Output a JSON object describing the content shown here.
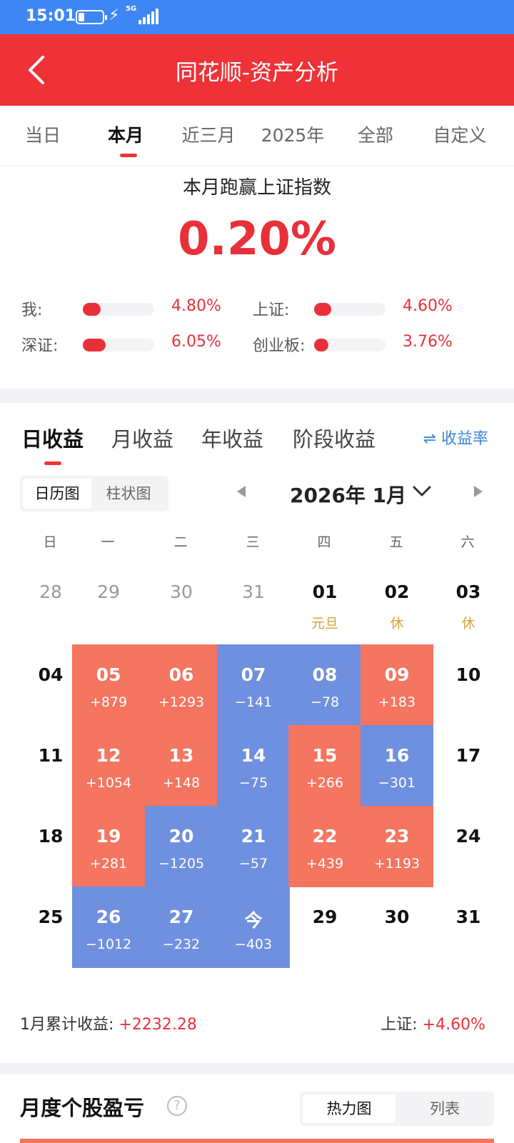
{
  "status": {
    "time": "15:01",
    "network": "5G"
  },
  "app": {
    "title": "同花顺-资产分析"
  },
  "period_tabs": [
    "当日",
    "本月",
    "近三月",
    "2025年",
    "全部",
    "自定义"
  ],
  "summary": {
    "headline": "本月跑赢上证指数",
    "value": "0.20%",
    "comparisons": [
      {
        "label": "我:",
        "value": "4.80%",
        "level": 0.25
      },
      {
        "label": "上证:",
        "value": "4.60%",
        "level": 0.24
      },
      {
        "label": "深证:",
        "value": "6.05%",
        "level": 0.32
      },
      {
        "label": "创业板:",
        "value": "3.76%",
        "level": 0.2
      }
    ]
  },
  "return_tabs": [
    "日收益",
    "月收益",
    "年收益",
    "阶段收益"
  ],
  "ratio_toggle": "⇌ 收益率",
  "view_toggle": [
    "日历图",
    "柱状图"
  ],
  "month_label": "2026年 1月",
  "weekdays": [
    "日",
    "一",
    "二",
    "三",
    "四",
    "五",
    "六"
  ],
  "calendar": [
    [
      {
        "d": "28",
        "t": "gray"
      },
      {
        "d": "29",
        "t": "gray"
      },
      {
        "d": "30",
        "t": "gray"
      },
      {
        "d": "31",
        "t": "gray"
      },
      {
        "d": "01",
        "t": "dark",
        "h": "元旦"
      },
      {
        "d": "02",
        "t": "dark",
        "h": "休"
      },
      {
        "d": "03",
        "t": "dark",
        "h": "休"
      }
    ],
    [
      {
        "d": "04",
        "t": "dark"
      },
      {
        "d": "05",
        "t": "gain",
        "p": "+879"
      },
      {
        "d": "06",
        "t": "gain",
        "p": "+1293"
      },
      {
        "d": "07",
        "t": "loss",
        "p": "−141"
      },
      {
        "d": "08",
        "t": "loss",
        "p": "−78"
      },
      {
        "d": "09",
        "t": "gain",
        "p": "+183"
      },
      {
        "d": "10",
        "t": "dark"
      }
    ],
    [
      {
        "d": "11",
        "t": "dark"
      },
      {
        "d": "12",
        "t": "gain",
        "p": "+1054"
      },
      {
        "d": "13",
        "t": "gain",
        "p": "+148"
      },
      {
        "d": "14",
        "t": "loss",
        "p": "−75"
      },
      {
        "d": "15",
        "t": "gain",
        "p": "+266"
      },
      {
        "d": "16",
        "t": "loss",
        "p": "−301"
      },
      {
        "d": "17",
        "t": "dark"
      }
    ],
    [
      {
        "d": "18",
        "t": "dark"
      },
      {
        "d": "19",
        "t": "gain",
        "p": "+281"
      },
      {
        "d": "20",
        "t": "loss",
        "p": "−1205"
      },
      {
        "d": "21",
        "t": "loss",
        "p": "−57"
      },
      {
        "d": "22",
        "t": "gain",
        "p": "+439"
      },
      {
        "d": "23",
        "t": "gain",
        "p": "+1193"
      },
      {
        "d": "24",
        "t": "dark"
      }
    ],
    [
      {
        "d": "25",
        "t": "dark"
      },
      {
        "d": "26",
        "t": "loss",
        "p": "−1012"
      },
      {
        "d": "27",
        "t": "loss",
        "p": "−232"
      },
      {
        "d": "今",
        "t": "loss",
        "p": "−403"
      },
      {
        "d": "29",
        "t": "dark"
      },
      {
        "d": "30",
        "t": "dark"
      },
      {
        "d": "31",
        "t": "dark"
      }
    ]
  ],
  "footer": {
    "cum_label": "1月累计收益:",
    "cum_value": "+2232.28",
    "index_label": "上证:",
    "index_value": "+4.60%"
  },
  "monthly": {
    "title": "月度个股盈亏",
    "help": "?",
    "toggle": [
      "热力图",
      "列表"
    ]
  },
  "colors": {
    "accent": "#ee3238",
    "gain": "#f47560",
    "loss": "#6f8fdf",
    "status_bar": "#3f86f5",
    "holiday": "#d9a23c"
  }
}
